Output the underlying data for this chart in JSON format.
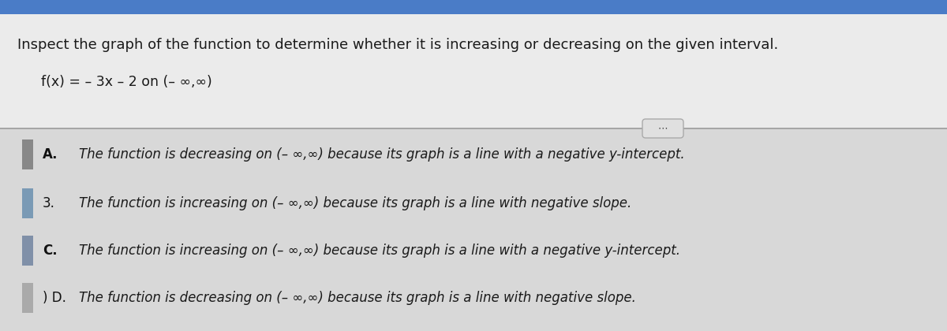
{
  "bg_top_strip_color": "#4a7cc7",
  "bg_upper_color": "#ebebeb",
  "bg_lower_color": "#d8d8d8",
  "title_text": "Inspect the graph of the function to determine whether it is increasing or decreasing on the given interval.",
  "function_line": "f(x) = – 3x – 2 on (– ∞,∞)",
  "divider_color": "#aaaaaa",
  "dots_text": "⋯",
  "options": [
    {
      "prefix": "",
      "label": "A.",
      "text": "The function is decreasing on (– ∞,∞) because its graph is a line with a negative y-intercept.",
      "box_color": "#888888"
    },
    {
      "prefix": "",
      "label": "3.",
      "text": "The function is increasing on (– ∞,∞) because its graph is a line with negative slope.",
      "box_color": "#7a9ab5"
    },
    {
      "prefix": "",
      "label": "C.",
      "text": "The function is increasing on (– ∞,∞) because its graph is a line with a negative y-intercept.",
      "box_color": "#8090a8"
    },
    {
      "prefix": ") ",
      "label": "D.",
      "text": "The function is decreasing on (– ∞,∞) because its graph is a line with negative slope.",
      "box_color": "#aaaaaa"
    }
  ],
  "title_fontsize": 13.0,
  "function_fontsize": 12.5,
  "option_fontsize": 12.0,
  "label_fontsize": 12.0
}
